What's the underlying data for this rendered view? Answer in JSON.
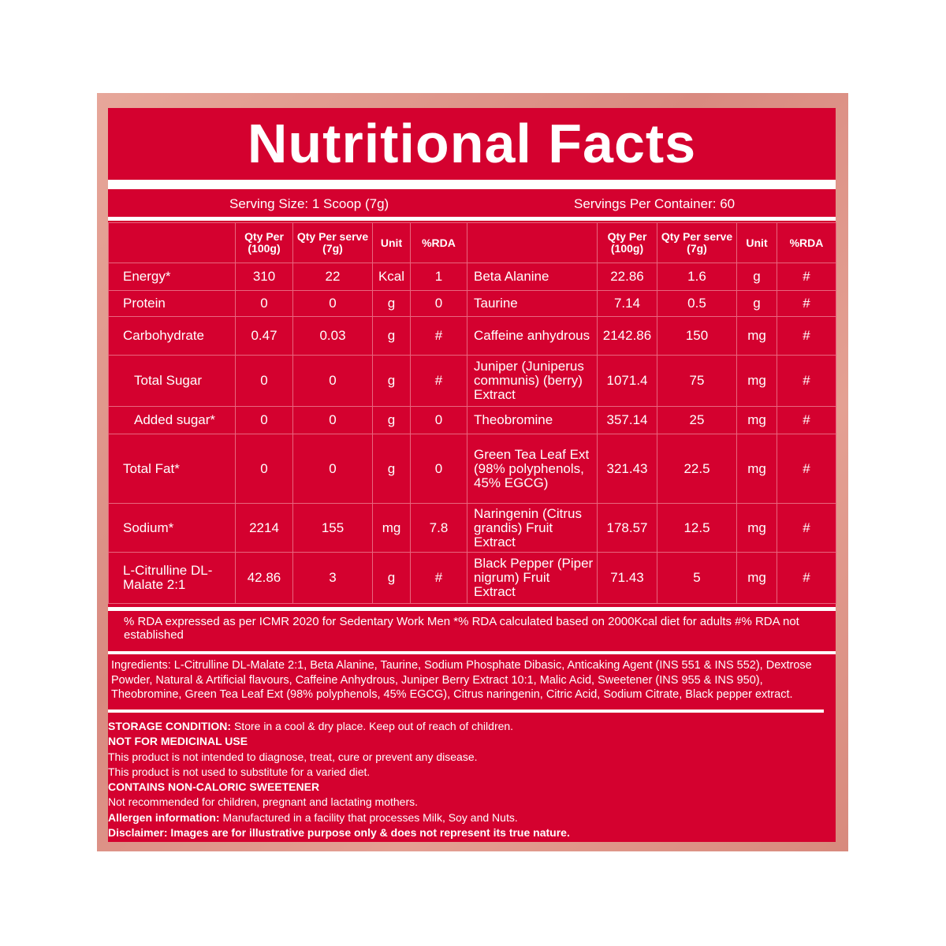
{
  "title": "Nutritional Facts",
  "serving_size": "Serving Size: 1 Scoop (7g)",
  "servings_per_container": "Servings Per Container: 60",
  "headers": {
    "qty100": "Qty Per (100g)",
    "qtyserve": "Qty Per serve (7g)",
    "unit": "Unit",
    "rda": "%RDA"
  },
  "rows": [
    {
      "l": [
        "Energy*",
        "310",
        "22",
        "Kcal",
        "1"
      ],
      "r": [
        "Beta Alanine",
        "22.86",
        "1.6",
        "g",
        "#"
      ]
    },
    {
      "l": [
        "Protein",
        "0",
        "0",
        "g",
        "0"
      ],
      "r": [
        "Taurine",
        "7.14",
        "0.5",
        "g",
        "#"
      ]
    },
    {
      "l": [
        "Carbohydrate",
        "0.47",
        "0.03",
        "g",
        "#"
      ],
      "r": [
        "Caffeine anhydrous",
        "2142.86",
        "150",
        "mg",
        "#"
      ]
    },
    {
      "l": [
        "Total Sugar",
        "0",
        "0",
        "g",
        "#"
      ],
      "r": [
        "Juniper (Juniperus communis) (berry) Extract",
        "1071.4",
        "75",
        "mg",
        "#"
      ]
    },
    {
      "l": [
        "Added sugar*",
        "0",
        "0",
        "g",
        "0"
      ],
      "r": [
        "Theobromine",
        "357.14",
        "25",
        "mg",
        "#"
      ]
    },
    {
      "l": [
        "Total Fat*",
        "0",
        "0",
        "g",
        "0"
      ],
      "r": [
        "Green Tea Leaf Ext (98% polyphenols, 45% EGCG)",
        "321.43",
        "22.5",
        "mg",
        "#"
      ]
    },
    {
      "l": [
        "Sodium*",
        "2214",
        "155",
        "mg",
        "7.8"
      ],
      "r": [
        "Naringenin (Citrus grandis) Fruit Extract",
        "178.57",
        "12.5",
        "mg",
        "#"
      ]
    },
    {
      "l": [
        "L-Citrulline DL-Malate 2:1",
        "42.86",
        "3",
        "g",
        "#"
      ],
      "r": [
        "Black Pepper (Piper nigrum) Fruit Extract",
        "71.43",
        "5",
        "mg",
        "#"
      ]
    }
  ],
  "rda_note": "% RDA expressed as per ICMR 2020 for Sedentary Work Men  *% RDA calculated based on 2000Kcal diet for adults  #% RDA not established",
  "ingredients": "Ingredients: L-Citrulline DL-Malate 2:1, Beta Alanine, Taurine, Sodium Phosphate Dibasic, Anticaking Agent (INS 551 & INS 552), Dextrose Powder, Natural & Artificial flavours, Caffeine Anhydrous, Juniper Berry Extract 10:1, Malic Acid, Sweetener (INS 955 & INS 950), Theobromine, Green Tea Leaf Ext (98% polyphenols, 45% EGCG), Citrus naringenin, Citric Acid, Sodium Citrate, Black pepper extract.",
  "storage": {
    "label": "STORAGE CONDITION:",
    "text": " Store in a cool & dry place. Keep out of reach of children.",
    "not_medicinal": "NOT FOR MEDICINAL USE",
    "line1": "This product is not intended to diagnose, treat, cure or prevent any disease.",
    "line2": "This product is not used to substitute for a varied diet.",
    "sweetener": "CONTAINS NON-CALORIC SWEETENER",
    "line3": "Not recommended for children, pregnant and lactating mothers.",
    "allergen_label": "Allergen information:",
    "allergen_text": " Manufactured in a facility that processes Milk, Soy and Nuts.",
    "disclaimer": "Disclaimer: Images are for illustrative purpose only & does not represent its true nature."
  },
  "colors": {
    "panel": "#d4012f",
    "outer": "#e0998c"
  }
}
